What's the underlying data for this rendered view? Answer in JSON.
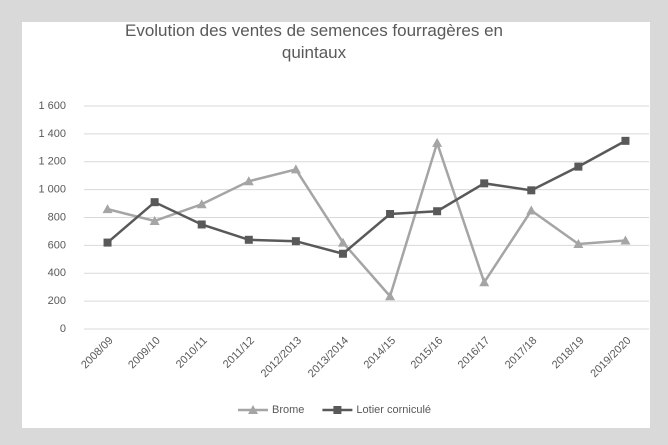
{
  "chart_data": {
    "type": "line",
    "title": "Evolution des ventes de semences fourragères en quintaux",
    "categories": [
      "2008/09",
      "2009/10",
      "2010/11",
      "2011/12",
      "2012/2013",
      "2013/2014",
      "2014/15",
      "2015/16",
      "2016/17",
      "2017/18",
      "2018/19",
      "2019/2020"
    ],
    "series": [
      {
        "name": "Brome",
        "color": "#a5a5a5",
        "marker": "triangle",
        "values": [
          860,
          775,
          895,
          1060,
          1145,
          620,
          235,
          1335,
          335,
          850,
          610,
          635
        ]
      },
      {
        "name": "Lotier corniculé",
        "color": "#595959",
        "marker": "square",
        "values": [
          620,
          910,
          750,
          640,
          630,
          540,
          825,
          845,
          1045,
          995,
          1165,
          1350
        ]
      }
    ],
    "ylim": [
      0,
      1600
    ],
    "yticks": [
      0,
      200,
      400,
      600,
      800,
      {
        "value": 1000,
        "label": "1 000"
      },
      {
        "value": 1200,
        "label": "1 200"
      },
      {
        "value": 1400,
        "label": "1 400"
      },
      {
        "value": 1600,
        "label": "1 600"
      }
    ],
    "grid": true,
    "legend": "bottom"
  }
}
